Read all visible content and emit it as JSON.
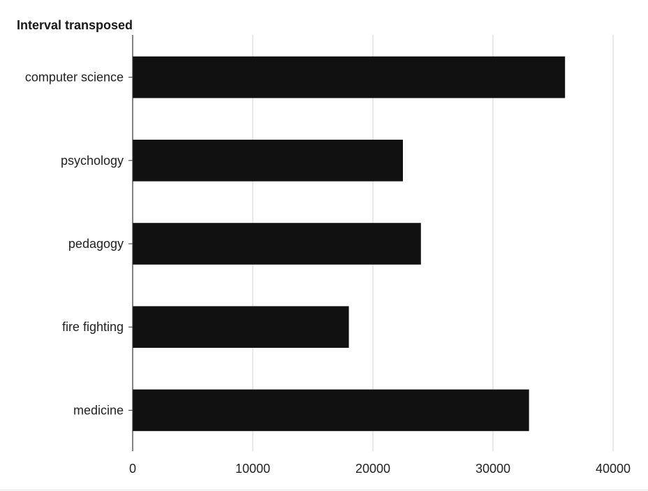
{
  "chart_data": {
    "type": "bar",
    "orientation": "horizontal",
    "title": "Interval transposed",
    "xlabel": "",
    "ylabel": "",
    "categories": [
      "computer science",
      "psychology",
      "pedagogy",
      "fire fighting",
      "medicine"
    ],
    "values": [
      36000,
      22500,
      24000,
      18000,
      33000
    ],
    "xlim": [
      0,
      40000
    ],
    "x_ticks": [
      0,
      10000,
      20000,
      30000,
      40000
    ],
    "x_tick_labels": [
      "0",
      "10000",
      "20000",
      "30000",
      "40000"
    ],
    "grid": "vertical",
    "colors": {
      "bar": "#111111",
      "grid": "#d0d0d0",
      "axis": "#333333",
      "text": "#222222"
    }
  }
}
